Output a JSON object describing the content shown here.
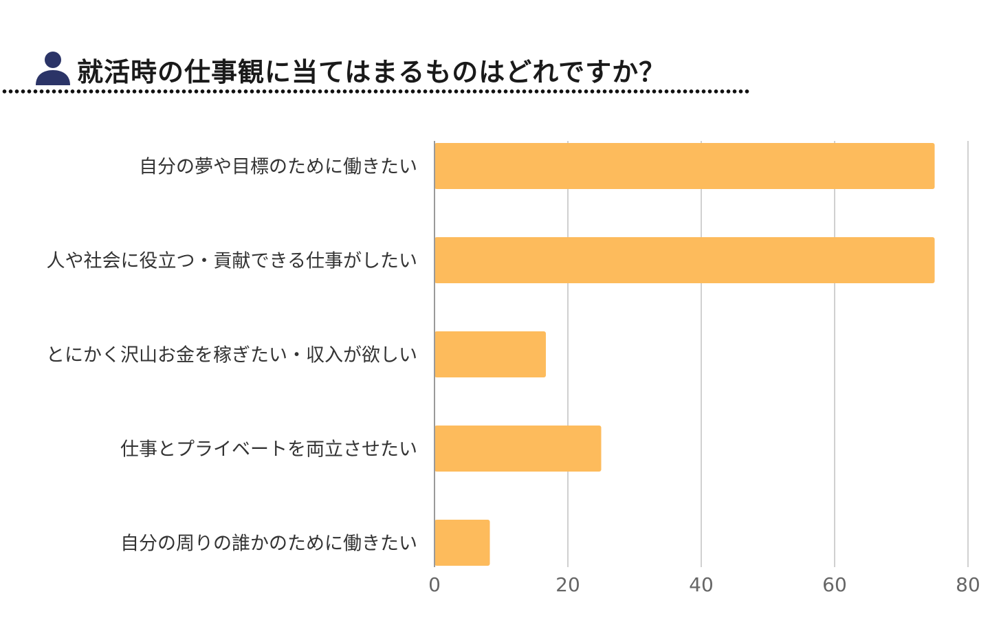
{
  "header": {
    "title": "就活時の仕事観に当てはまるものはどれですか？",
    "icon": "person-icon",
    "icon_color": "#2b3467"
  },
  "chart_data": {
    "type": "bar",
    "orientation": "horizontal",
    "categories": [
      "自分の夢や目標のために働きたい",
      "人や社会に役立つ・貢献できる仕事がしたい",
      "とにかく沢山お金を稼ぎたい・収入が欲しい",
      "仕事とプライベートを両立させたい",
      "自分の周りの誰かのために働きたい"
    ],
    "values": [
      75,
      75,
      16.7,
      25,
      8.3
    ],
    "xlim": [
      0,
      80
    ],
    "x_ticks": [
      "0",
      "20",
      "40",
      "60",
      "80"
    ],
    "grid": true,
    "bar_color": "#fdbb5c",
    "legend": "none"
  }
}
